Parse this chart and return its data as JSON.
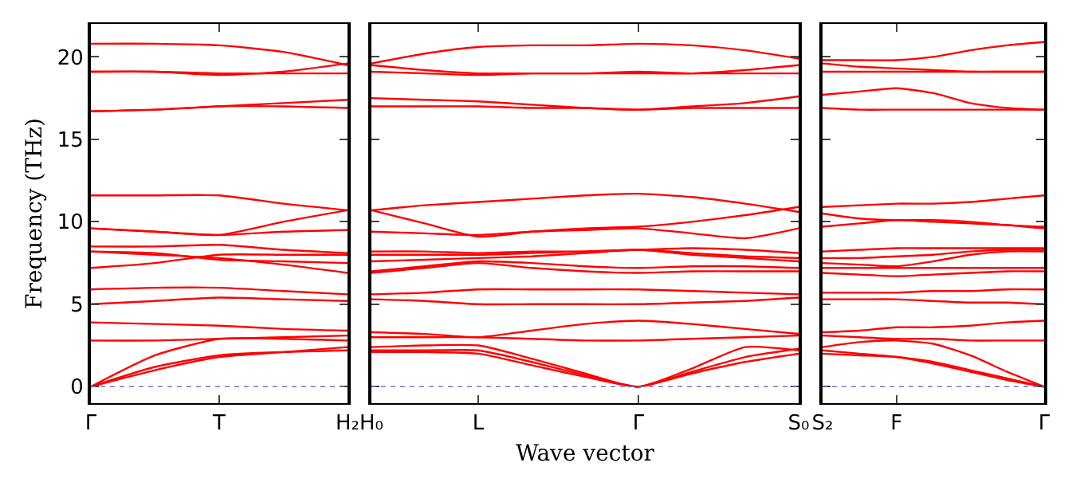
{
  "chart_data": [
    {
      "type": "line",
      "ylabel": "Frequency (THz)",
      "categories": [
        "Γ",
        null,
        "T",
        null,
        "H₂"
      ],
      "ylim": [
        -1,
        22
      ],
      "yticks": [
        0,
        5,
        10,
        15,
        20
      ],
      "marker": "none",
      "line_style": "solid",
      "ref_lines": [
        {
          "axis": "y",
          "value": 0,
          "color": "#7777cc",
          "line_style": "dotted"
        }
      ],
      "series": [
        {
          "color": "#ff0000",
          "values": [
            20.8,
            20.8,
            20.7,
            20.3,
            19.5
          ]
        },
        {
          "color": "#ff0000",
          "values": [
            19.1,
            19.1,
            18.9,
            19.1,
            19.6
          ]
        },
        {
          "color": "#ff0000",
          "values": [
            19.1,
            19.1,
            19.0,
            19.0,
            19.0
          ]
        },
        {
          "color": "#ff0000",
          "values": [
            16.7,
            16.8,
            17.0,
            17.2,
            17.4
          ]
        },
        {
          "color": "#ff0000",
          "values": [
            16.7,
            16.8,
            17.0,
            17.0,
            16.9
          ]
        },
        {
          "color": "#ff0000",
          "values": [
            11.6,
            11.6,
            11.6,
            11.1,
            10.7
          ]
        },
        {
          "color": "#ff0000",
          "values": [
            9.6,
            9.4,
            9.2,
            10.0,
            10.7
          ]
        },
        {
          "color": "#ff0000",
          "values": [
            9.6,
            9.4,
            9.2,
            9.4,
            9.5
          ]
        },
        {
          "color": "#ff0000",
          "values": [
            8.5,
            8.5,
            8.6,
            8.3,
            8.1
          ]
        },
        {
          "color": "#ff0000",
          "values": [
            8.2,
            8.1,
            7.7,
            7.6,
            7.5
          ]
        },
        {
          "color": "#ff0000",
          "values": [
            8.2,
            8.0,
            7.8,
            7.4,
            6.9
          ]
        },
        {
          "color": "#ff0000",
          "values": [
            7.2,
            7.5,
            8.0,
            8.0,
            8.0
          ]
        },
        {
          "color": "#ff0000",
          "values": [
            5.9,
            6.0,
            6.0,
            5.8,
            5.6
          ]
        },
        {
          "color": "#ff0000",
          "values": [
            5.0,
            5.2,
            5.4,
            5.3,
            5.2
          ]
        },
        {
          "color": "#ff0000",
          "values": [
            3.9,
            3.8,
            3.7,
            3.5,
            3.4
          ]
        },
        {
          "color": "#ff0000",
          "values": [
            2.8,
            2.8,
            2.9,
            3.0,
            3.1
          ]
        },
        {
          "color": "#ff0000",
          "values": [
            0,
            1.9,
            2.9,
            2.9,
            2.8
          ]
        },
        {
          "color": "#ff0000",
          "values": [
            0,
            1.2,
            1.9,
            2.1,
            2.2
          ]
        },
        {
          "color": "#ff0000",
          "values": [
            0,
            1.0,
            1.8,
            2.1,
            2.4
          ]
        }
      ]
    },
    {
      "type": "line",
      "xlabel": "Wave vector",
      "categories": [
        "H₀",
        null,
        "L",
        null,
        null,
        "Γ",
        null,
        null,
        "S₀"
      ],
      "ylim": [
        -1,
        22
      ],
      "yticks": [
        0,
        5,
        10,
        15,
        20
      ],
      "tick_labels": "x",
      "marker": "none",
      "line_style": "solid",
      "ref_lines": [
        {
          "axis": "y",
          "value": 0,
          "color": "#7777cc",
          "line_style": "dotted"
        }
      ],
      "series": [
        {
          "color": "#ff0000",
          "values": [
            19.6,
            20.2,
            20.6,
            20.7,
            20.7,
            20.8,
            20.7,
            20.4,
            19.9
          ]
        },
        {
          "color": "#ff0000",
          "values": [
            19.5,
            19.2,
            19.0,
            19.0,
            19.0,
            19.0,
            19.0,
            19.2,
            19.5
          ]
        },
        {
          "color": "#ff0000",
          "values": [
            19.1,
            19.0,
            18.9,
            19.0,
            19.0,
            19.1,
            19.0,
            19.0,
            19.0
          ]
        },
        {
          "color": "#ff0000",
          "values": [
            17.5,
            17.4,
            17.3,
            17.1,
            16.9,
            16.8,
            17.0,
            17.2,
            17.6
          ]
        },
        {
          "color": "#ff0000",
          "values": [
            17.0,
            17.0,
            17.0,
            16.9,
            16.9,
            16.8,
            16.9,
            16.9,
            16.9
          ]
        },
        {
          "color": "#ff0000",
          "values": [
            10.7,
            11.0,
            11.2,
            11.4,
            11.6,
            11.7,
            11.5,
            11.1,
            10.6
          ]
        },
        {
          "color": "#ff0000",
          "values": [
            10.7,
            9.9,
            9.1,
            9.4,
            9.6,
            9.7,
            10.0,
            10.4,
            10.9
          ]
        },
        {
          "color": "#ff0000",
          "values": [
            9.4,
            9.3,
            9.2,
            9.4,
            9.5,
            9.6,
            9.3,
            9.0,
            9.6
          ]
        },
        {
          "color": "#ff0000",
          "values": [
            8.2,
            8.2,
            8.1,
            8.2,
            8.2,
            8.3,
            8.1,
            7.9,
            7.8
          ]
        },
        {
          "color": "#ff0000",
          "values": [
            8.0,
            8.0,
            8.0,
            8.1,
            8.2,
            8.3,
            8.4,
            8.3,
            8.1
          ]
        },
        {
          "color": "#ff0000",
          "values": [
            7.6,
            7.7,
            7.8,
            7.9,
            8.1,
            8.3,
            8.0,
            7.8,
            7.6
          ]
        },
        {
          "color": "#ff0000",
          "values": [
            7.0,
            7.3,
            7.6,
            7.5,
            7.3,
            7.2,
            7.3,
            7.3,
            7.2
          ]
        },
        {
          "color": "#ff0000",
          "values": [
            6.9,
            7.2,
            7.5,
            7.2,
            7.0,
            6.9,
            7.0,
            7.0,
            7.0
          ]
        },
        {
          "color": "#ff0000",
          "values": [
            5.6,
            5.7,
            5.9,
            5.9,
            5.9,
            5.9,
            5.8,
            5.7,
            5.6
          ]
        },
        {
          "color": "#ff0000",
          "values": [
            5.3,
            5.2,
            5.0,
            5.0,
            5.0,
            5.0,
            5.1,
            5.2,
            5.4
          ]
        },
        {
          "color": "#ff0000",
          "values": [
            3.3,
            3.2,
            3.0,
            3.4,
            3.8,
            4.0,
            3.8,
            3.5,
            3.2
          ]
        },
        {
          "color": "#ff0000",
          "values": [
            3.0,
            3.0,
            3.0,
            2.9,
            2.8,
            2.8,
            2.9,
            3.0,
            3.1
          ]
        },
        {
          "color": "#ff0000",
          "values": [
            2.4,
            2.5,
            2.5,
            1.7,
            0.8,
            0,
            1.1,
            2.4,
            2.2
          ]
        },
        {
          "color": "#ff0000",
          "values": [
            2.2,
            2.2,
            2.2,
            1.5,
            0.7,
            0,
            0.9,
            1.8,
            2.3
          ]
        },
        {
          "color": "#ff0000",
          "values": [
            2.1,
            2.1,
            2.0,
            1.3,
            0.6,
            0,
            0.8,
            1.5,
            2.0
          ]
        }
      ]
    },
    {
      "type": "line",
      "categories": [
        "S₂",
        null,
        "F",
        null,
        null,
        null,
        "Γ"
      ],
      "ylim": [
        -1,
        22
      ],
      "yticks": [
        0,
        5,
        10,
        15,
        20
      ],
      "tick_labels": "x",
      "marker": "none",
      "line_style": "solid",
      "ref_lines": [
        {
          "axis": "y",
          "value": 0,
          "color": "#7777cc",
          "line_style": "dotted"
        }
      ],
      "series": [
        {
          "color": "#ff0000",
          "values": [
            19.8,
            19.8,
            19.8,
            20.0,
            20.4,
            20.7,
            20.9
          ]
        },
        {
          "color": "#ff0000",
          "values": [
            19.6,
            19.4,
            19.3,
            19.2,
            19.1,
            19.1,
            19.1
          ]
        },
        {
          "color": "#ff0000",
          "values": [
            19.1,
            19.1,
            19.1,
            19.1,
            19.1,
            19.1,
            19.1
          ]
        },
        {
          "color": "#ff0000",
          "values": [
            17.7,
            17.9,
            18.1,
            17.8,
            17.2,
            16.9,
            16.8
          ]
        },
        {
          "color": "#ff0000",
          "values": [
            16.9,
            16.8,
            16.8,
            16.8,
            16.8,
            16.8,
            16.8
          ]
        },
        {
          "color": "#ff0000",
          "values": [
            10.9,
            11.0,
            11.1,
            11.1,
            11.2,
            11.4,
            11.6
          ]
        },
        {
          "color": "#ff0000",
          "values": [
            10.5,
            10.2,
            10.1,
            10.1,
            10.0,
            9.8,
            9.7
          ]
        },
        {
          "color": "#ff0000",
          "values": [
            9.7,
            9.9,
            10.1,
            10.0,
            9.9,
            9.8,
            9.6
          ]
        },
        {
          "color": "#ff0000",
          "values": [
            8.2,
            8.3,
            8.4,
            8.4,
            8.4,
            8.4,
            8.4
          ]
        },
        {
          "color": "#ff0000",
          "values": [
            7.8,
            7.8,
            7.9,
            8.0,
            8.2,
            8.3,
            8.3
          ]
        },
        {
          "color": "#ff0000",
          "values": [
            7.5,
            7.4,
            7.3,
            7.6,
            8.0,
            8.2,
            8.2
          ]
        },
        {
          "color": "#ff0000",
          "values": [
            7.2,
            7.2,
            7.2,
            7.2,
            7.2,
            7.2,
            7.2
          ]
        },
        {
          "color": "#ff0000",
          "values": [
            6.9,
            6.8,
            6.7,
            6.8,
            6.9,
            7.0,
            7.0
          ]
        },
        {
          "color": "#ff0000",
          "values": [
            5.7,
            5.7,
            5.7,
            5.8,
            5.8,
            5.9,
            5.9
          ]
        },
        {
          "color": "#ff0000",
          "values": [
            5.3,
            5.3,
            5.3,
            5.2,
            5.1,
            5.1,
            5.0
          ]
        },
        {
          "color": "#ff0000",
          "values": [
            3.3,
            3.4,
            3.6,
            3.6,
            3.7,
            3.9,
            4.0
          ]
        },
        {
          "color": "#ff0000",
          "values": [
            3.1,
            3.0,
            2.9,
            2.9,
            2.8,
            2.8,
            2.8
          ]
        },
        {
          "color": "#ff0000",
          "values": [
            2.4,
            2.7,
            2.8,
            2.6,
            1.9,
            0.9,
            0
          ]
        },
        {
          "color": "#ff0000",
          "values": [
            2.2,
            2.0,
            1.8,
            1.5,
            1.0,
            0.5,
            0
          ]
        },
        {
          "color": "#ff0000",
          "values": [
            2.0,
            1.9,
            1.8,
            1.4,
            0.9,
            0.4,
            0
          ]
        }
      ]
    }
  ]
}
